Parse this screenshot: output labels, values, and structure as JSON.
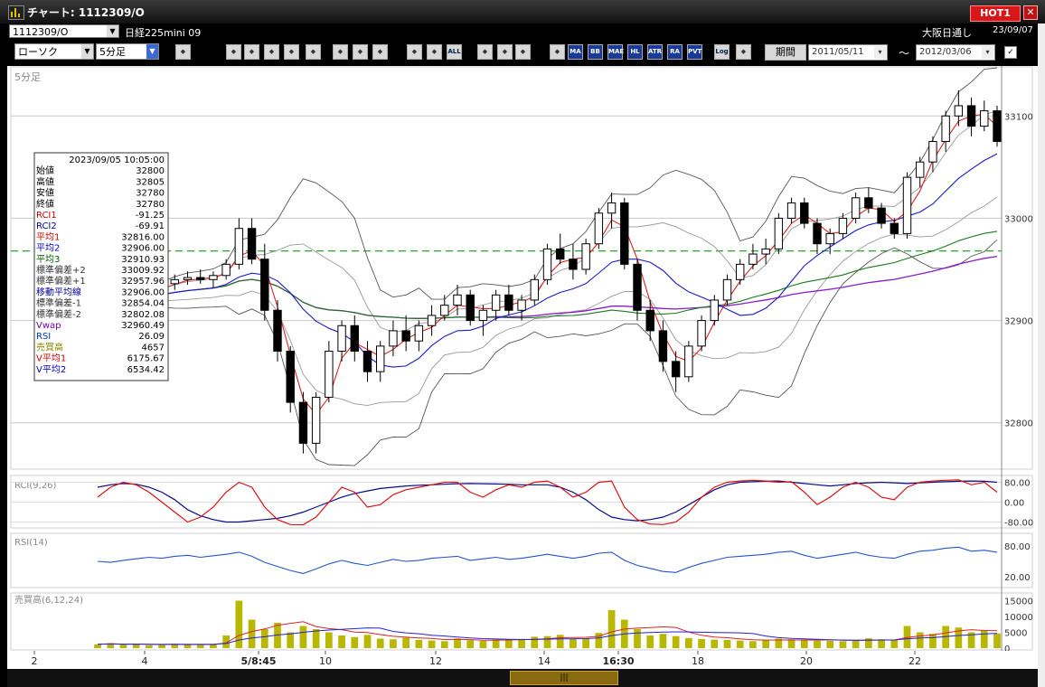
{
  "window": {
    "title": "チャート: 1112309/O",
    "hot_label": "HOT1",
    "close_label": "✕"
  },
  "header": {
    "symbol": "1112309/O",
    "instrument": "日経225mini 09",
    "session": "大阪日通し",
    "date": "23/09/07"
  },
  "toolbar": {
    "chart_type": "ローソク",
    "interval": "5分足",
    "buttons": [
      "search",
      "draw-line",
      "bar",
      "table",
      "candle-mark",
      "alert",
      "pen",
      "cursor",
      "undo",
      "stick-a",
      "stick-b",
      "all",
      "gear",
      "brush",
      "palette",
      "period",
      "ma",
      "bb",
      "mae",
      "hl",
      "atr",
      "ra",
      "pvt",
      "log",
      "copy"
    ],
    "button_labels": {
      "all": "ALL",
      "ma": "MA",
      "bb": "BB",
      "mae": "MAE",
      "hl": "HL",
      "atr": "ATR",
      "ra": "RA",
      "pvt": "PVT",
      "log": "Log"
    },
    "period_label": "期間",
    "from_date": "2011/05/11",
    "to_date": "2012/03/06",
    "tilde": "〜"
  },
  "main_panel_label": "5分足",
  "info_box": {
    "datetime": "2023/09/05  10:05:00",
    "rows": [
      {
        "label": "始値",
        "value": "32800",
        "color": "#000000"
      },
      {
        "label": "高値",
        "value": "32805",
        "color": "#000000"
      },
      {
        "label": "安値",
        "value": "32780",
        "color": "#000000"
      },
      {
        "label": "終値",
        "value": "32780",
        "color": "#000000"
      },
      {
        "label": "RCI1",
        "value": "-91.25",
        "color": "#cc0000"
      },
      {
        "label": "RCI2",
        "value": "-69.91",
        "color": "#0000aa"
      },
      {
        "label": "平均1",
        "value": "32816.00",
        "color": "#cc0000"
      },
      {
        "label": "平均2",
        "value": "32906.00",
        "color": "#0000cc"
      },
      {
        "label": "平均3",
        "value": "32910.93",
        "color": "#006600"
      },
      {
        "label": "標準偏差+2",
        "value": "33009.92",
        "color": "#333333"
      },
      {
        "label": "標準偏差+1",
        "value": "32957.96",
        "color": "#333333"
      },
      {
        "label": "移動平均線",
        "value": "32906.00",
        "color": "#000099"
      },
      {
        "label": "標準偏差-1",
        "value": "32854.04",
        "color": "#333333"
      },
      {
        "label": "標準偏差-2",
        "value": "32802.08",
        "color": "#333333"
      },
      {
        "label": "Vwap",
        "value": "32960.49",
        "color": "#7700aa"
      },
      {
        "label": "RSI",
        "value": "26.09",
        "color": "#0033cc"
      },
      {
        "label": "売買高",
        "value": "4657",
        "color": "#888800"
      },
      {
        "label": "V平均1",
        "value": "6175.67",
        "color": "#cc0000"
      },
      {
        "label": "V平均2",
        "value": "6534.42",
        "color": "#0000cc"
      }
    ]
  },
  "price_axis": {
    "ticks": [
      "33100",
      "33000",
      "32900",
      "32800"
    ]
  },
  "rci_panel": {
    "label": "RCI(9,26)",
    "ticks": [
      "80.00",
      "0.00",
      "-80.00"
    ]
  },
  "rsi_panel": {
    "label": "RSI(14)",
    "ticks": [
      "80.00",
      "20.00"
    ]
  },
  "volume_panel": {
    "label": "売買高(6,12,24)",
    "ticks": [
      "15000",
      "10000",
      "5000",
      "0"
    ]
  },
  "time_axis": {
    "labels": [
      "2",
      "4",
      "5/8:45",
      "10",
      "12",
      "14",
      "16:30",
      "18",
      "20",
      "22"
    ]
  },
  "colors": {
    "rsi": "#2255cc",
    "rci_fast": "#dd1111",
    "rci_slow": "#0a0a88",
    "volume": "#b8b800",
    "ma_short": "#dd2222",
    "ma_mid": "#1a1acc",
    "ma_long": "#1a7a1a",
    "vwap": "#8a1acc",
    "dashed_level": "#22aa22"
  },
  "chart_data": {
    "type": "candlestick",
    "interval": "5分足",
    "ylim": [
      32760,
      33140
    ],
    "dashed_level": 32968,
    "candles": [
      [
        32925,
        32932,
        32915,
        32920
      ],
      [
        32920,
        32928,
        32912,
        32918
      ],
      [
        32918,
        32925,
        32910,
        32922
      ],
      [
        32922,
        32930,
        32918,
        32926
      ],
      [
        32926,
        32934,
        32920,
        32930
      ],
      [
        32930,
        32940,
        32925,
        32936
      ],
      [
        32936,
        32945,
        32930,
        32940
      ],
      [
        32940,
        32948,
        32935,
        32942
      ],
      [
        32942,
        32950,
        32936,
        32940
      ],
      [
        32940,
        32948,
        32932,
        32944
      ],
      [
        32944,
        32960,
        32940,
        32955
      ],
      [
        32955,
        33000,
        32950,
        32990
      ],
      [
        32990,
        33000,
        32955,
        32960
      ],
      [
        32960,
        32975,
        32900,
        32910
      ],
      [
        32910,
        32920,
        32860,
        32870
      ],
      [
        32870,
        32875,
        32810,
        32820
      ],
      [
        32820,
        32830,
        32770,
        32780
      ],
      [
        32780,
        32830,
        32770,
        32825
      ],
      [
        32825,
        32880,
        32820,
        32870
      ],
      [
        32870,
        32900,
        32860,
        32895
      ],
      [
        32895,
        32905,
        32860,
        32870
      ],
      [
        32870,
        32880,
        32840,
        32850
      ],
      [
        32850,
        32880,
        32840,
        32875
      ],
      [
        32875,
        32900,
        32865,
        32890
      ],
      [
        32890,
        32905,
        32870,
        32880
      ],
      [
        32880,
        32900,
        32870,
        32895
      ],
      [
        32895,
        32915,
        32885,
        32905
      ],
      [
        32905,
        32925,
        32900,
        32915
      ],
      [
        32915,
        32935,
        32905,
        32925
      ],
      [
        32925,
        32930,
        32895,
        32900
      ],
      [
        32900,
        32915,
        32885,
        32910
      ],
      [
        32910,
        32930,
        32900,
        32925
      ],
      [
        32925,
        32935,
        32905,
        32910
      ],
      [
        32910,
        32925,
        32900,
        32920
      ],
      [
        32920,
        32945,
        32915,
        32940
      ],
      [
        32940,
        32975,
        32935,
        32970
      ],
      [
        32970,
        32985,
        32955,
        32960
      ],
      [
        32960,
        32975,
        32940,
        32950
      ],
      [
        32950,
        32980,
        32945,
        32975
      ],
      [
        32975,
        33010,
        32970,
        33005
      ],
      [
        33005,
        33025,
        32990,
        33015
      ],
      [
        33015,
        33020,
        32950,
        32955
      ],
      [
        32955,
        32960,
        32900,
        32910
      ],
      [
        32910,
        32920,
        32880,
        32890
      ],
      [
        32890,
        32900,
        32850,
        32860
      ],
      [
        32860,
        32870,
        32830,
        32845
      ],
      [
        32845,
        32880,
        32840,
        32875
      ],
      [
        32875,
        32905,
        32870,
        32900
      ],
      [
        32900,
        32925,
        32895,
        32920
      ],
      [
        32920,
        32945,
        32915,
        32940
      ],
      [
        32940,
        32960,
        32935,
        32955
      ],
      [
        32955,
        32975,
        32950,
        32965
      ],
      [
        32965,
        32980,
        32955,
        32970
      ],
      [
        32970,
        33005,
        32965,
        33000
      ],
      [
        33000,
        33020,
        32995,
        33015
      ],
      [
        33015,
        33020,
        32990,
        32995
      ],
      [
        32995,
        33000,
        32965,
        32975
      ],
      [
        32975,
        32990,
        32965,
        32985
      ],
      [
        32985,
        33005,
        32980,
        33000
      ],
      [
        33000,
        33025,
        32995,
        33020
      ],
      [
        33020,
        33030,
        33005,
        33010
      ],
      [
        33010,
        33015,
        32990,
        32995
      ],
      [
        32995,
        33000,
        32980,
        32985
      ],
      [
        32985,
        33045,
        32980,
        33040
      ],
      [
        33040,
        33060,
        33030,
        33055
      ],
      [
        33055,
        33080,
        33045,
        33075
      ],
      [
        33075,
        33105,
        33065,
        33100
      ],
      [
        33100,
        33125,
        33090,
        33110
      ],
      [
        33110,
        33118,
        33080,
        33090
      ],
      [
        33090,
        33115,
        33085,
        33105
      ],
      [
        33105,
        33110,
        33070,
        33075
      ]
    ],
    "rsi": [
      50,
      48,
      52,
      55,
      58,
      56,
      60,
      62,
      58,
      61,
      64,
      68,
      60,
      48,
      40,
      32,
      26,
      35,
      45,
      52,
      46,
      42,
      48,
      54,
      50,
      52,
      56,
      58,
      60,
      52,
      55,
      58,
      54,
      56,
      60,
      64,
      60,
      56,
      60,
      66,
      68,
      52,
      42,
      36,
      30,
      28,
      38,
      46,
      52,
      58,
      60,
      62,
      64,
      68,
      70,
      62,
      56,
      60,
      64,
      68,
      62,
      58,
      56,
      64,
      70,
      72,
      76,
      78,
      70,
      72,
      68
    ],
    "rci_fast": [
      20,
      60,
      80,
      70,
      40,
      0,
      -40,
      -80,
      -60,
      -20,
      40,
      80,
      60,
      -20,
      -70,
      -90,
      -91,
      -60,
      0,
      60,
      40,
      -20,
      -10,
      30,
      50,
      60,
      70,
      80,
      80,
      40,
      20,
      50,
      70,
      60,
      80,
      85,
      60,
      20,
      40,
      80,
      85,
      -20,
      -70,
      -88,
      -90,
      -80,
      -40,
      20,
      60,
      80,
      85,
      88,
      85,
      80,
      82,
      40,
      -10,
      20,
      60,
      80,
      60,
      20,
      10,
      60,
      80,
      85,
      88,
      90,
      70,
      80,
      40
    ],
    "rci_slow": [
      60,
      70,
      75,
      72,
      60,
      40,
      10,
      -30,
      -55,
      -70,
      -80,
      -80,
      -75,
      -70,
      -65,
      -55,
      -40,
      -20,
      0,
      20,
      35,
      45,
      55,
      60,
      65,
      68,
      70,
      72,
      74,
      75,
      74,
      73,
      72,
      70,
      70,
      70,
      60,
      40,
      10,
      -30,
      -60,
      -70,
      -75,
      -70,
      -60,
      -40,
      -10,
      20,
      50,
      70,
      80,
      82,
      84,
      85,
      80,
      75,
      70,
      65,
      70,
      75,
      78,
      80,
      78,
      75,
      78,
      80,
      82,
      84,
      85,
      84,
      80
    ],
    "volume": [
      1200,
      1500,
      1100,
      1300,
      900,
      1000,
      1400,
      1200,
      1100,
      1300,
      4000,
      15000,
      9000,
      6000,
      8000,
      5000,
      7000,
      6000,
      5000,
      4000,
      3500,
      4200,
      3000,
      2800,
      3300,
      2600,
      2400,
      2200,
      3100,
      2500,
      2300,
      2700,
      2600,
      2900,
      3600,
      3800,
      4200,
      3000,
      3100,
      4800,
      12000,
      9000,
      6000,
      4000,
      4500,
      3800,
      3200,
      2900,
      2700,
      2600,
      2400,
      2200,
      2500,
      3000,
      2800,
      2600,
      2400,
      2300,
      2200,
      2500,
      3100,
      2800,
      2600,
      7000,
      5000,
      4500,
      7000,
      6500,
      5000,
      5500,
      4657
    ]
  }
}
